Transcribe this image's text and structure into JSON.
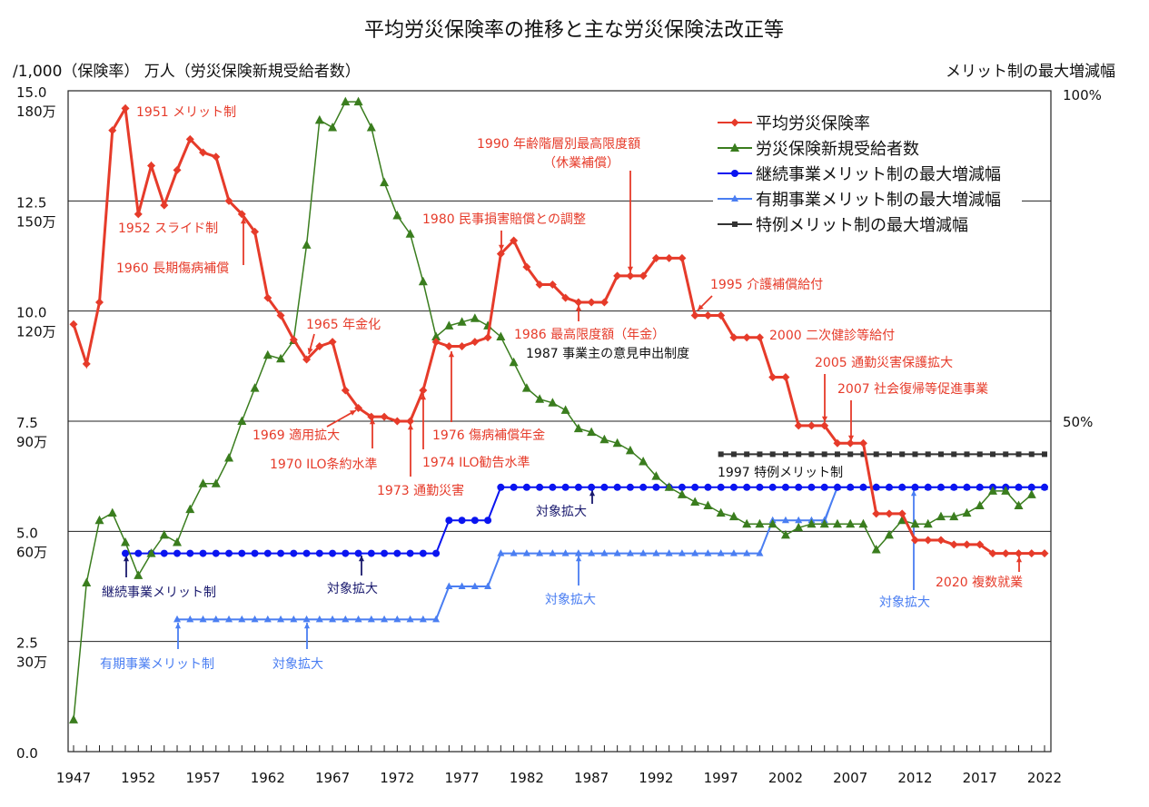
{
  "chart_data": {
    "type": "line",
    "title": "平均労災保険率の推移と主な労災保険法改正等",
    "left_axis_label": "/1,000（保険率） 万人（労災保険新規受給者数）",
    "right_axis_label": "メリット制の最大増減幅",
    "x_ticks": [
      "1947",
      "1952",
      "1957",
      "1962",
      "1967",
      "1972",
      "1977",
      "1982",
      "1987",
      "1992",
      "1997",
      "2002",
      "2007",
      "2012",
      "2017",
      "2022"
    ],
    "y_ticks_rate": [
      "0.0",
      "2.5",
      "5.0",
      "7.5",
      "10.0",
      "12.5",
      "15.0"
    ],
    "y_ticks_workers": [
      "30万",
      "60万",
      "90万",
      "120万",
      "150万",
      "180万"
    ],
    "y_ticks_merit": [
      "50%",
      "100%"
    ],
    "ylim_rate": [
      0,
      15
    ],
    "ylim_workers": [
      0,
      180
    ],
    "ylim_merit": [
      0,
      100
    ],
    "xlim": [
      1947,
      2022
    ],
    "legend_position": "top-right",
    "series": [
      {
        "name": "平均労災保険率",
        "color": "#e63b2a",
        "marker": "diamond",
        "axis": "rate",
        "start_year": 1947,
        "values": [
          9.7,
          8.8,
          10.2,
          14.1,
          14.6,
          12.2,
          13.3,
          12.4,
          13.2,
          13.9,
          13.6,
          13.5,
          12.5,
          12.2,
          11.8,
          10.3,
          9.9,
          9.35,
          8.9,
          9.2,
          9.3,
          8.2,
          7.8,
          7.6,
          7.6,
          7.5,
          7.5,
          8.2,
          9.3,
          9.2,
          9.2,
          9.3,
          9.4,
          11.3,
          11.6,
          11.0,
          10.6,
          10.6,
          10.3,
          10.2,
          10.2,
          10.2,
          10.8,
          10.8,
          10.8,
          11.2,
          11.2,
          11.2,
          9.9,
          9.9,
          9.9,
          9.4,
          9.4,
          9.4,
          8.5,
          8.5,
          7.4,
          7.4,
          7.4,
          7.0,
          7.0,
          7.0,
          5.4,
          5.4,
          5.4,
          4.8,
          4.8,
          4.8,
          4.7,
          4.7,
          4.7,
          4.5,
          4.5,
          4.5,
          4.5,
          4.5
        ]
      },
      {
        "name": "労災保険新規受給者数",
        "color": "#3a7d1e",
        "marker": "triangle",
        "axis": "workers",
        "start_year": 1947,
        "values": [
          8.7,
          46,
          63,
          65,
          57,
          48,
          54,
          59,
          57,
          66,
          73,
          73,
          80,
          90,
          99,
          108,
          107,
          112,
          138,
          172,
          170,
          177,
          177,
          170,
          155,
          146,
          141,
          128,
          113,
          116,
          117,
          118,
          116,
          113,
          106,
          99,
          96,
          95,
          93,
          88,
          87,
          85,
          84,
          82,
          79,
          75,
          72,
          70,
          68,
          67,
          65,
          64,
          62,
          62,
          62,
          59,
          61,
          62,
          62,
          62,
          62,
          62,
          55,
          59,
          63,
          62,
          62,
          64,
          64,
          65,
          67,
          71,
          71,
          67,
          70
        ]
      },
      {
        "name": "継続事業メリット制の最大増減幅",
        "color": "#0a14f0",
        "marker": "circle",
        "axis": "merit",
        "start_year": 1951,
        "values": [
          30,
          30,
          30,
          30,
          30,
          30,
          30,
          30,
          30,
          30,
          30,
          30,
          30,
          30,
          30,
          30,
          30,
          30,
          30,
          30,
          30,
          30,
          30,
          30,
          30,
          35,
          35,
          35,
          35,
          40,
          40,
          40,
          40,
          40,
          40,
          40,
          40,
          40,
          40,
          40,
          40,
          40,
          40,
          40,
          40,
          40,
          40,
          40,
          40,
          40,
          40,
          40,
          40,
          40,
          40,
          40,
          40,
          40,
          40,
          40,
          40,
          40,
          40,
          40,
          40,
          40,
          40,
          40,
          40,
          40,
          40,
          40
        ]
      },
      {
        "name": "有期事業メリット制の最大増減幅",
        "color": "#4a7ef2",
        "marker": "small-triangle",
        "axis": "merit",
        "start_year": 1955,
        "values": [
          20,
          20,
          20,
          20,
          20,
          20,
          20,
          20,
          20,
          20,
          20,
          20,
          20,
          20,
          20,
          20,
          20,
          20,
          20,
          20,
          20,
          25,
          25,
          25,
          25,
          30,
          30,
          30,
          30,
          30,
          30,
          30,
          30,
          30,
          30,
          30,
          30,
          30,
          30,
          30,
          30,
          30,
          30,
          30,
          30,
          30,
          35,
          35,
          35,
          35,
          35,
          40,
          40,
          40,
          40,
          40,
          40,
          40,
          40,
          40,
          40,
          40,
          40,
          40,
          40,
          40,
          40,
          40
        ]
      },
      {
        "name": "特例メリット制の最大増減幅",
        "color": "#333333",
        "marker": "square",
        "axis": "merit",
        "start_year": 1997,
        "values": [
          45,
          45,
          45,
          45,
          45,
          45,
          45,
          45,
          45,
          45,
          45,
          45,
          45,
          45,
          45,
          45,
          45,
          45,
          45,
          45,
          45,
          45,
          45,
          45,
          45,
          45
        ]
      }
    ],
    "annotations": [
      {
        "text": "1951 メリット制",
        "color": "#e63b2a"
      },
      {
        "text": "1952 スライド制",
        "color": "#e63b2a"
      },
      {
        "text": "1960 長期傷病補償",
        "color": "#e63b2a"
      },
      {
        "text": "1965 年金化",
        "color": "#e63b2a"
      },
      {
        "text": "1969 適用拡大",
        "color": "#e63b2a"
      },
      {
        "text": "1970 ILO条約水準",
        "color": "#e63b2a"
      },
      {
        "text": "1973 通勤災害",
        "color": "#e63b2a"
      },
      {
        "text": "1974 ILO勧告水準",
        "color": "#e63b2a"
      },
      {
        "text": "1976 傷病補償年金",
        "color": "#e63b2a"
      },
      {
        "text": "1980 民事損害賠償との調整",
        "color": "#e63b2a"
      },
      {
        "text": "1990 年齢階層別最高限度額",
        "color": "#e63b2a"
      },
      {
        "text": "（休業補償）",
        "color": "#e63b2a"
      },
      {
        "text": "1986 最高限度額（年金）",
        "color": "#e63b2a"
      },
      {
        "text": "1987 事業主の意見申出制度",
        "color": "#111111"
      },
      {
        "text": "1995 介護補償給付",
        "color": "#e63b2a"
      },
      {
        "text": "2000 二次健診等給付",
        "color": "#e63b2a"
      },
      {
        "text": "2005  通勤災害保護拡大",
        "color": "#e63b2a"
      },
      {
        "text": "2007 社会復帰等促進事業",
        "color": "#e63b2a"
      },
      {
        "text": "2020 複数就業",
        "color": "#e63b2a"
      },
      {
        "text": "1997 特例メリット制",
        "color": "#111111"
      },
      {
        "text": "継続事業メリット制",
        "color": "#1a1a6e"
      },
      {
        "text": "対象拡大",
        "color": "#1a1a6e"
      },
      {
        "text": "対象拡大",
        "color": "#1a1a6e"
      },
      {
        "text": "有期事業メリット制",
        "color": "#4a7ef2"
      },
      {
        "text": "対象拡大",
        "color": "#4a7ef2"
      },
      {
        "text": "対象拡大",
        "color": "#4a7ef2"
      },
      {
        "text": "対象拡大",
        "color": "#4a7ef2"
      }
    ]
  }
}
